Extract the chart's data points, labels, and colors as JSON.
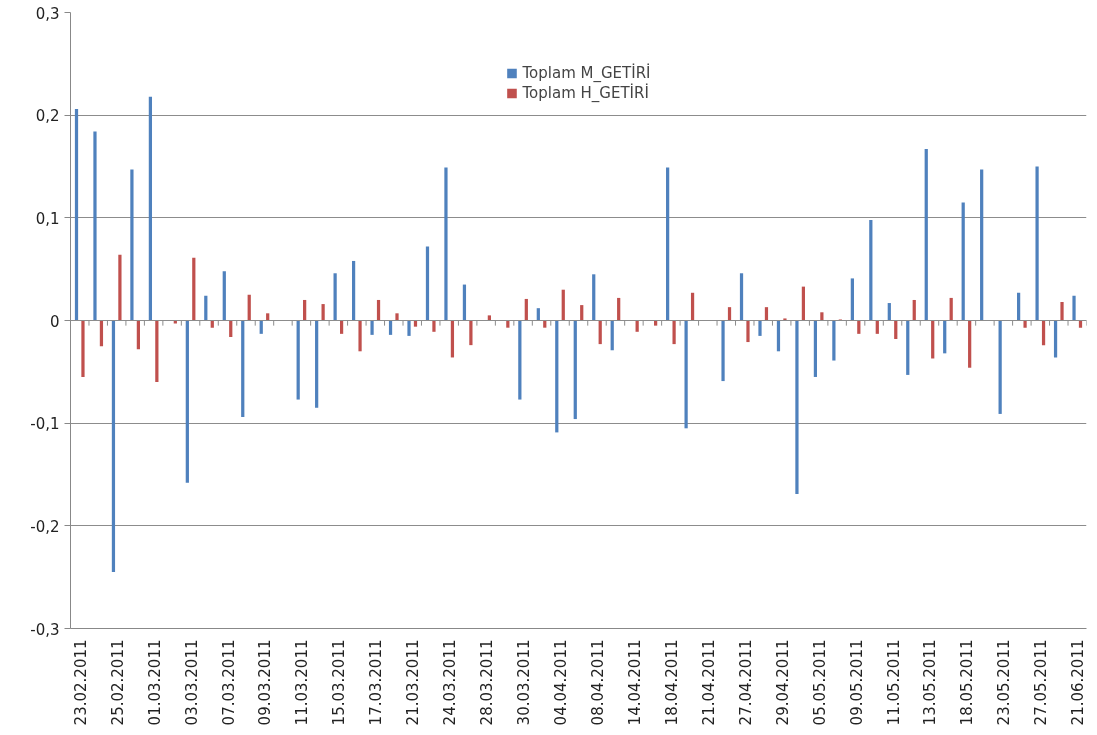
{
  "chart_data": {
    "type": "bar",
    "categories": [
      "23.02.2011",
      null,
      "25.02.2011",
      null,
      "01.03.2011",
      null,
      "03.03.2011",
      null,
      "07.03.2011",
      null,
      "09.03.2011",
      null,
      "11.03.2011",
      null,
      "15.03.2011",
      null,
      "17.03.2011",
      null,
      "21.03.2011",
      null,
      "24.03.2011",
      null,
      "28.03.2011",
      null,
      "30.03.2011",
      null,
      "04.04.2011",
      null,
      "08.04.2011",
      null,
      "14.04.2011",
      null,
      "18.04.2011",
      null,
      "21.04.2011",
      null,
      "27.04.2011",
      null,
      "29.04.2011",
      null,
      "05.05.2011",
      null,
      "09.05.2011",
      null,
      "11.05.2011",
      null,
      "13.05.2011",
      null,
      "18.05.2011",
      null,
      "23.05.2011",
      null,
      "27.05.2011",
      null,
      "21.06.2011"
    ],
    "series": [
      {
        "name": "Toplam M_GETİRİ",
        "color": "#4f81bd",
        "values": [
          0.206,
          0.184,
          -0.245,
          0.147,
          0.218,
          null,
          -0.158,
          0.024,
          0.048,
          -0.094,
          -0.013,
          null,
          -0.077,
          -0.085,
          0.046,
          0.058,
          -0.014,
          -0.014,
          -0.015,
          0.072,
          0.149,
          0.035,
          null,
          null,
          -0.077,
          0.012,
          -0.109,
          -0.096,
          0.045,
          -0.029,
          null,
          null,
          0.149,
          -0.105,
          null,
          -0.059,
          0.046,
          -0.015,
          -0.03,
          -0.169,
          -0.055,
          -0.039,
          0.041,
          0.098,
          0.017,
          -0.053,
          0.167,
          -0.032,
          0.115,
          0.147,
          -0.091,
          0.027,
          0.15,
          -0.036,
          0.024
        ]
      },
      {
        "name": "Toplam H_GETİRİ",
        "color": "#c0504d",
        "values": [
          -0.055,
          -0.025,
          0.064,
          -0.028,
          -0.06,
          -0.003,
          0.061,
          -0.007,
          -0.016,
          0.025,
          0.007,
          null,
          0.02,
          0.016,
          -0.013,
          -0.03,
          0.02,
          0.007,
          -0.006,
          -0.011,
          -0.036,
          -0.024,
          0.005,
          -0.007,
          0.021,
          -0.007,
          0.03,
          0.015,
          -0.023,
          0.022,
          -0.011,
          -0.005,
          -0.023,
          0.027,
          null,
          0.013,
          -0.021,
          0.013,
          0.002,
          0.033,
          0.008,
          0.001,
          -0.013,
          -0.013,
          -0.018,
          0.02,
          -0.037,
          0.022,
          -0.046,
          null,
          null,
          -0.007,
          -0.024,
          0.018,
          -0.007
        ]
      }
    ],
    "ylim": [
      -0.3,
      0.3
    ],
    "yticks": [
      {
        "value": -0.3,
        "label": "-0,3"
      },
      {
        "value": -0.2,
        "label": "-0,2"
      },
      {
        "value": -0.1,
        "label": "-0,1"
      },
      0,
      {
        "value": 0.1,
        "label": "0,1"
      },
      {
        "value": 0.2,
        "label": "0,2"
      },
      {
        "value": 0.3,
        "label": "0,3"
      }
    ],
    "grid": "y",
    "legend": "top"
  }
}
